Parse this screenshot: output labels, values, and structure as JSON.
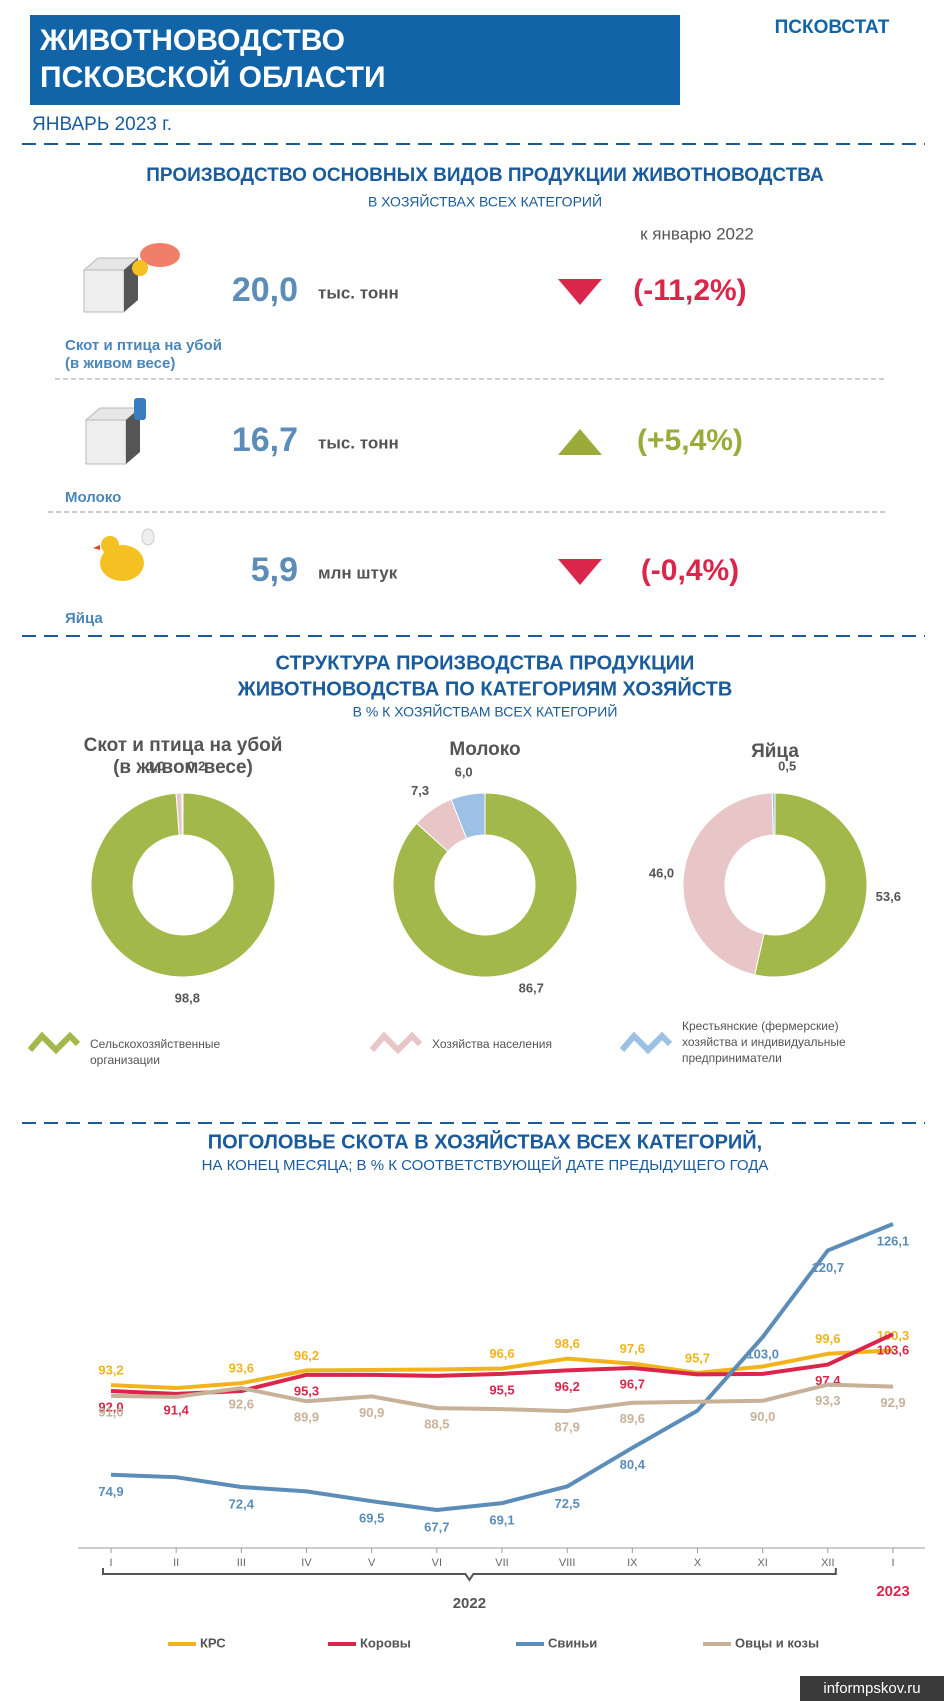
{
  "header": {
    "title_lines": [
      "ЖИВОТНОВОДСТВО",
      "ПСКОВСКОЙ ОБЛАСТИ"
    ],
    "agency": "ПСКОВСТАТ",
    "period": "ЯНВАРЬ 2023 г.",
    "watermark": "informpskov.ru"
  },
  "production": {
    "title": "ПРОИЗВОДСТВО ОСНОВНЫХ ВИДОВ ПРОДУКЦИИ ЖИВОТНОВОДСТВА",
    "subtitle": "В ХОЗЯЙСТВАХ ВСЕХ КАТЕГОРИЙ",
    "compare_label": "к январю 2022",
    "items": [
      {
        "label_lines": [
          "Скот и птица на убой",
          "(в живом весе)"
        ],
        "value": "20,0",
        "unit": "тыс. тонн",
        "change": "(-11,2%)",
        "trend": "down"
      },
      {
        "label_lines": [
          "Молоко"
        ],
        "value": "16,7",
        "unit": "тыс. тонн",
        "change": "(+5,4%)",
        "trend": "up"
      },
      {
        "label_lines": [
          "Яйца"
        ],
        "value": "5,9",
        "unit": "млн штук",
        "change": "(-0,4%)",
        "trend": "down"
      }
    ]
  },
  "structure": {
    "title_lines": [
      "СТРУКТУРА ПРОИЗВОДСТВА ПРОДУКЦИИ",
      "ЖИВОТНОВОДСТВА ПО КАТЕГОРИЯМ ХОЗЯЙСТВ"
    ],
    "subtitle": "В % К ХОЗЯЙСТВАМ ВСЕХ КАТЕГОРИЙ"
  },
  "chart_data": [
    {
      "type": "pie",
      "title_lines": [
        "Скот и птица на убой",
        "(в живом весе)"
      ],
      "categories": [
        "Сельскохозяйственные организации",
        "Хозяйства населения",
        "Крестьянские (фермерские) хозяйства и индивидуальные предприниматели"
      ],
      "values": [
        98.8,
        1.0,
        0.2
      ],
      "value_labels": [
        "98,8",
        "1,0",
        "0,2"
      ],
      "colors": [
        "#a3b84a",
        "#e8c5c6",
        "#9cc1e4"
      ],
      "legend_position": "bottom"
    },
    {
      "type": "pie",
      "title_lines": [
        "Молоко"
      ],
      "categories": [
        "Сельскохозяйственные организации",
        "Хозяйства населения",
        "Крестьянские (фермерские) хозяйства и индивидуальные предприниматели"
      ],
      "values": [
        86.7,
        7.3,
        6.0
      ],
      "value_labels": [
        "86,7",
        "7,3",
        "6,0"
      ],
      "colors": [
        "#a3b84a",
        "#e8c5c6",
        "#9cc1e4"
      ]
    },
    {
      "type": "pie",
      "title_lines": [
        "Яйца"
      ],
      "categories": [
        "Сельскохозяйственные организации",
        "Хозяйства населения",
        "Крестьянские (фермерские) хозяйства и индивидуальные предприниматели"
      ],
      "values": [
        53.6,
        46.0,
        0.5
      ],
      "value_labels": [
        "53,6",
        "46,0",
        "0,5"
      ],
      "colors": [
        "#a3b84a",
        "#e8c5c6",
        "#9cc1e4"
      ]
    },
    {
      "type": "line",
      "title": "ПОГОЛОВЬЕ СКОТА В ХОЗЯЙСТВАХ ВСЕХ КАТЕГОРИЙ,",
      "subtitle": "НА КОНЕЦ МЕСЯЦА; В % К СООТВЕТСТВУЮЩЕЙ ДАТЕ ПРЕДЫДУЩЕГО ГОДА",
      "categories": [
        "I",
        "II",
        "III",
        "IV",
        "V",
        "VI",
        "VII",
        "VIII",
        "IX",
        "X",
        "XI",
        "XII",
        "I"
      ],
      "x_groups": [
        "2022",
        "2023"
      ],
      "legend_position": "bottom",
      "series": [
        {
          "name": "КРС",
          "color": "#f2b41c",
          "values": [
            93.2,
            92.6,
            93.6,
            96.2,
            96.3,
            96.4,
            96.6,
            98.6,
            97.6,
            95.7,
            97.0,
            99.6,
            100.3
          ],
          "value_labels": [
            "93,2",
            null,
            "93,6",
            "96,2",
            null,
            null,
            "96,6",
            "98,6",
            "97,6",
            "95,7",
            null,
            "99,6",
            "100,3"
          ]
        },
        {
          "name": "Коровы",
          "color": "#d9264a",
          "values": [
            92.0,
            91.4,
            92.0,
            95.3,
            95.3,
            95.1,
            95.5,
            96.2,
            96.7,
            95.4,
            95.5,
            97.4,
            103.6
          ],
          "value_labels": [
            "92,0",
            "91,4",
            null,
            "95,3",
            null,
            null,
            "95,5",
            "96,2",
            "96,7",
            null,
            null,
            "97,4",
            "103,6"
          ]
        },
        {
          "name": "Свиньи",
          "color": "#5b8db8",
          "values": [
            74.9,
            74.4,
            72.4,
            71.5,
            69.5,
            67.7,
            69.1,
            72.5,
            80.4,
            88.0,
            103.0,
            120.7,
            126.1
          ],
          "value_labels": [
            "74,9",
            null,
            "72,4",
            null,
            "69,5",
            "67,7",
            "69,1",
            "72,5",
            "80,4",
            null,
            "103,0",
            "120,7",
            "126,1"
          ]
        },
        {
          "name": "Овцы и козы",
          "color": "#c8b199",
          "values": [
            91.0,
            90.8,
            92.6,
            89.9,
            90.9,
            88.5,
            88.3,
            87.9,
            89.6,
            89.8,
            90.0,
            93.3,
            92.9
          ],
          "value_labels": [
            "91,0",
            null,
            "92,6",
            "89,9",
            "90,9",
            "88,5",
            null,
            "87,9",
            "89,6",
            null,
            "90,0",
            "93,3",
            "92,9"
          ]
        }
      ]
    }
  ]
}
